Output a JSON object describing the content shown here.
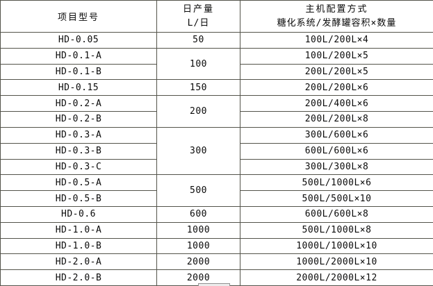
{
  "table": {
    "headers": {
      "col1": "项目型号",
      "col2_line1": "日产量",
      "col2_line2": "L/日",
      "col3_line1": "主机配置方式",
      "col3_line2": "糖化系统/发酵罐容积×数量"
    },
    "rows": [
      {
        "model": "HD-0.05",
        "output": "50",
        "config": "100L/200L×4"
      },
      {
        "model": "HD-0.1-A",
        "output": "100",
        "config": "100L/200L×5"
      },
      {
        "model": "HD-0.1-B",
        "config": "200L/200L×5"
      },
      {
        "model": "HD-0.15",
        "output": "150",
        "config": "200L/200L×6"
      },
      {
        "model": "HD-0.2-A",
        "output": "200",
        "config": "200L/400L×6"
      },
      {
        "model": "HD-0.2-B",
        "config": "200L/200L×8"
      },
      {
        "model": "HD-0.3-A",
        "output": "300",
        "config": "300L/600L×6"
      },
      {
        "model": "HD-0.3-B",
        "config": "600L/600L×6"
      },
      {
        "model": "HD-0.3-C",
        "config": "300L/300L×8"
      },
      {
        "model": "HD-0.5-A",
        "output": "500",
        "config": "500L/1000L×6"
      },
      {
        "model": "HD-0.5-B",
        "config": "500L/500L×10"
      },
      {
        "model": "HD-0.6",
        "output": "600",
        "config": "600L/600L×8"
      },
      {
        "model": "HD-1.0-A",
        "output": "1000",
        "config": "500L/1000L×8"
      },
      {
        "model": "HD-1.0-B",
        "output": "1000",
        "config": "1000L/1000L×10"
      },
      {
        "model": "HD-2.0-A",
        "output": "2000",
        "config": "1000L/2000L×10"
      },
      {
        "model": "HD-2.0-B",
        "output": "2000",
        "config": "2000L/2000L×12"
      }
    ],
    "border_color": "#53534a",
    "text_color": "#0a0a0a",
    "background_color": "#ffffff"
  }
}
